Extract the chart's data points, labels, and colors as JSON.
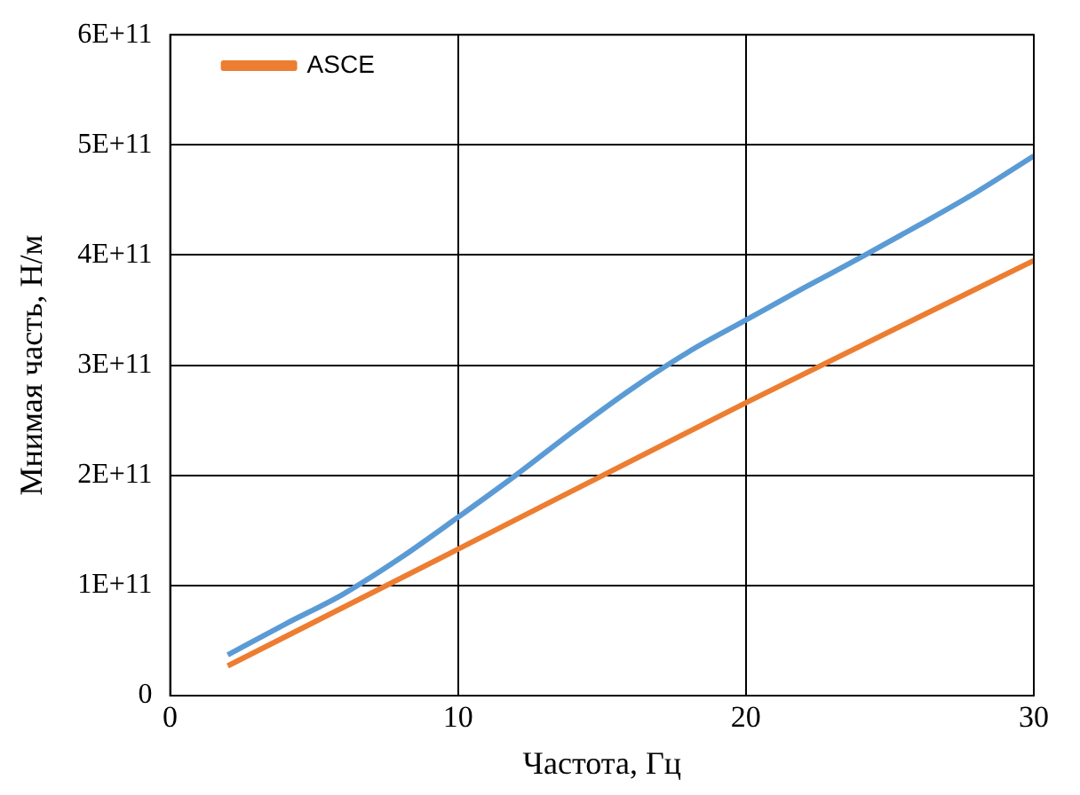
{
  "chart_data": {
    "type": "line",
    "xlabel": "Частота, Гц",
    "ylabel": "Мнимая часть, Н/м",
    "xlim": [
      0,
      30
    ],
    "xticks": [
      0,
      10,
      20,
      30
    ],
    "ylim": [
      0,
      600000000000
    ],
    "yticks": [
      {
        "value": 0,
        "label": "0"
      },
      {
        "value": 100000000000,
        "label": "1E+11"
      },
      {
        "value": 200000000000,
        "label": "2E+11"
      },
      {
        "value": 300000000000,
        "label": "3E+11"
      },
      {
        "value": 400000000000,
        "label": "4E+11"
      },
      {
        "value": 500000000000,
        "label": "5E+11"
      },
      {
        "value": 600000000000,
        "label": "6E+11"
      }
    ],
    "grid": true,
    "legend": "top left",
    "marker": "none",
    "line_style": "solid",
    "series": [
      {
        "color": "#5b9bd5",
        "x": [
          2,
          4,
          6,
          8,
          10,
          12,
          14,
          16,
          18,
          20,
          22,
          24,
          26,
          28,
          30
        ],
        "values": [
          37000000000,
          65000000000,
          92000000000,
          125000000000,
          162000000000,
          200000000000,
          240000000000,
          278000000000,
          312000000000,
          341000000000,
          370000000000,
          398000000000,
          427000000000,
          457000000000,
          490000000000
        ]
      },
      {
        "name": "ASCE",
        "color": "#ed7d31",
        "x": [
          2,
          10,
          20,
          30
        ],
        "values": [
          27000000000,
          133000000000,
          266000000000,
          395000000000
        ]
      }
    ]
  }
}
